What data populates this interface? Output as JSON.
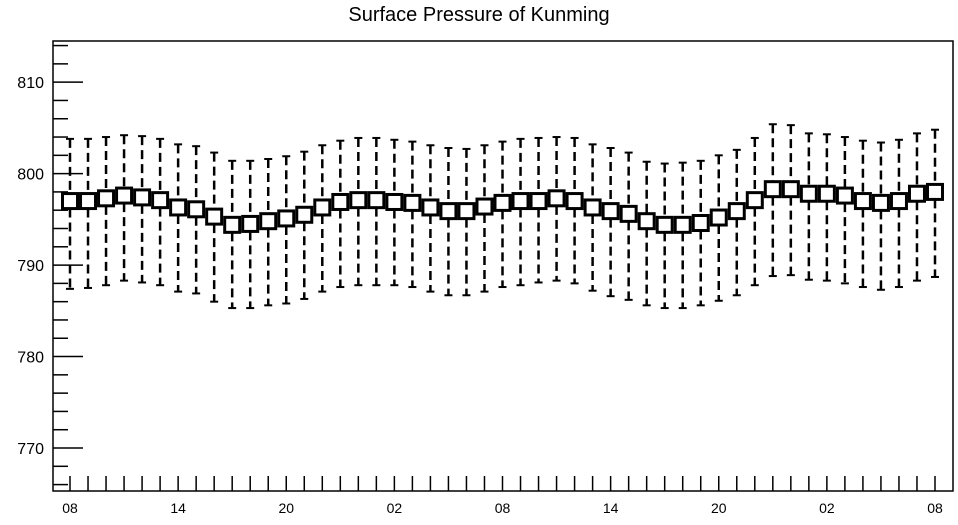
{
  "chart_data": {
    "type": "box",
    "title": "Surface Pressure of Kunming",
    "xlabel": "",
    "ylabel": "",
    "ylim": [
      765.3,
      814.5
    ],
    "y_ticks": [
      770,
      780,
      790,
      800,
      810
    ],
    "x_tick_labels": [
      "08",
      "14",
      "20",
      "02",
      "08",
      "14",
      "20",
      "02",
      "08"
    ],
    "x_tick_positions": [
      0,
      6,
      12,
      18,
      24,
      30,
      36,
      42,
      48
    ],
    "grid": false,
    "colors": {
      "box_fill": "#ffffff",
      "stroke": "#000000"
    },
    "series": [
      {
        "x": [
          0,
          1,
          2,
          3,
          4,
          5,
          6,
          7,
          8,
          9,
          10,
          11,
          12,
          13,
          14,
          15,
          16,
          17,
          18,
          19,
          20,
          21,
          22,
          23,
          24,
          25,
          26,
          27,
          28,
          29,
          30,
          31,
          32,
          33,
          34,
          35,
          36,
          37,
          38,
          39,
          40,
          41,
          42,
          43,
          44,
          45,
          46,
          47,
          48
        ],
        "median": [
          797.0,
          797.0,
          797.3,
          797.6,
          797.4,
          797.1,
          796.3,
          796.1,
          795.3,
          794.4,
          794.5,
          794.8,
          795.1,
          795.5,
          796.3,
          796.9,
          797.1,
          797.1,
          796.9,
          796.8,
          796.3,
          795.9,
          795.9,
          796.4,
          796.8,
          797.0,
          797.0,
          797.3,
          797.0,
          796.3,
          795.9,
          795.6,
          794.8,
          794.4,
          794.4,
          794.6,
          795.2,
          795.9,
          797.1,
          798.3,
          798.3,
          797.8,
          797.8,
          797.6,
          797.0,
          796.8,
          797.0,
          797.8,
          798.0
        ],
        "whisker_high": [
          803.8,
          803.8,
          804.0,
          804.2,
          804.1,
          803.8,
          803.2,
          803.0,
          802.3,
          801.4,
          801.4,
          801.6,
          801.9,
          802.4,
          803.1,
          803.6,
          803.9,
          803.9,
          803.7,
          803.5,
          803.1,
          802.8,
          802.7,
          803.1,
          803.5,
          803.8,
          803.9,
          804.0,
          803.9,
          803.2,
          802.8,
          802.3,
          801.3,
          801.1,
          801.2,
          801.4,
          802.0,
          802.6,
          803.9,
          805.4,
          805.3,
          804.4,
          804.3,
          804.0,
          803.6,
          803.4,
          803.7,
          804.4,
          804.8
        ],
        "whisker_low": [
          787.4,
          787.5,
          787.8,
          788.3,
          788.1,
          787.8,
          787.1,
          786.9,
          786.0,
          785.3,
          785.3,
          785.6,
          785.8,
          786.3,
          787.1,
          787.6,
          787.8,
          787.8,
          787.8,
          787.6,
          787.1,
          786.7,
          786.7,
          787.1,
          787.6,
          787.8,
          788.1,
          788.3,
          788.0,
          787.2,
          786.6,
          786.2,
          785.6,
          785.3,
          785.3,
          785.6,
          786.1,
          786.7,
          787.8,
          788.8,
          788.9,
          788.4,
          788.3,
          788.0,
          787.6,
          787.3,
          787.6,
          788.3,
          788.7
        ]
      }
    ]
  }
}
